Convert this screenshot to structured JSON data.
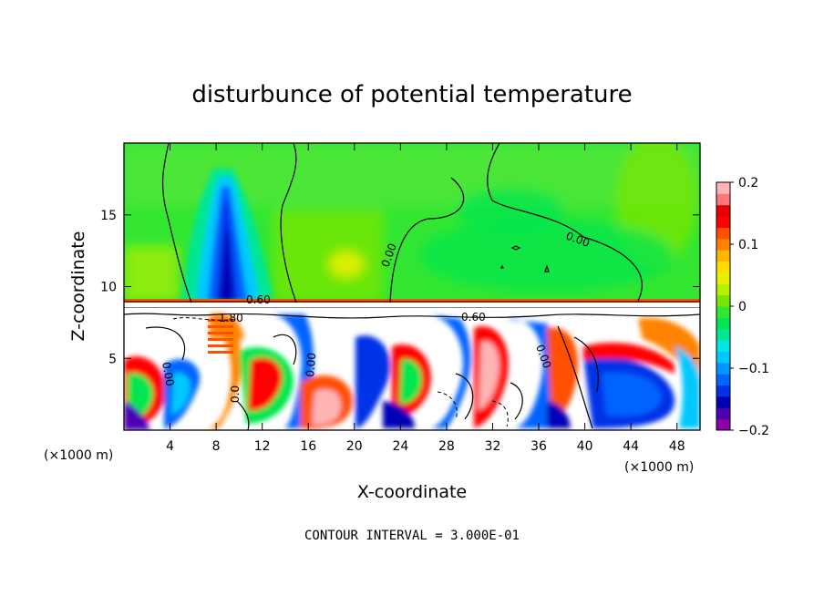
{
  "chart_data": {
    "type": "heatmap",
    "title": "disturbunce of potential temperature",
    "xlabel": "X-coordinate",
    "ylabel": "Z-coordinate",
    "x_unit_label": "(×1000 m)",
    "z_unit_label": "(×1000 m)",
    "xlim": [
      0,
      50
    ],
    "ylim": [
      0,
      20
    ],
    "x_ticks": [
      4,
      8,
      12,
      16,
      20,
      24,
      28,
      32,
      36,
      40,
      44,
      48
    ],
    "y_ticks": [
      5,
      10,
      15
    ],
    "colorbar": {
      "range": [
        -0.2,
        0.2
      ],
      "tick_values": [
        0.2,
        0.1,
        0,
        -0.1,
        -0.2
      ],
      "tick_labels": [
        "0.2",
        "0.1",
        "0",
        "−0.1",
        "−0.2"
      ],
      "colors": [
        "#8c00a8",
        "#4b00b4",
        "#0000b4",
        "#0032e6",
        "#0064ff",
        "#0096ff",
        "#00c8ff",
        "#00e6e6",
        "#00e696",
        "#00e650",
        "#32e632",
        "#78e600",
        "#b4f000",
        "#e6f000",
        "#ffdc00",
        "#ffb400",
        "#ff8200",
        "#ff5000",
        "#ff0000",
        "#e60000",
        "#ff7878",
        "#ffb4b4"
      ]
    },
    "contour_labels": [
      "0.00",
      "0.00",
      "0.60",
      "1.80",
      "0.60",
      "0.00",
      "0.00",
      "0.0",
      "0.00"
    ],
    "contour_interval_label": "CONTOUR INTERVAL = 3.000E-01",
    "features": [
      {
        "name": "upper-negative-plume",
        "x_center": 8.5,
        "z_top": 18,
        "z_bottom": 9,
        "min_value": -0.15
      },
      {
        "name": "stable-layer",
        "z": 9,
        "value": 0.15
      },
      {
        "name": "mixed-boundary-layer",
        "z_top": 8.5,
        "note": "strong mixed positive/negative eddies, values exceeding colorbar range"
      }
    ]
  }
}
